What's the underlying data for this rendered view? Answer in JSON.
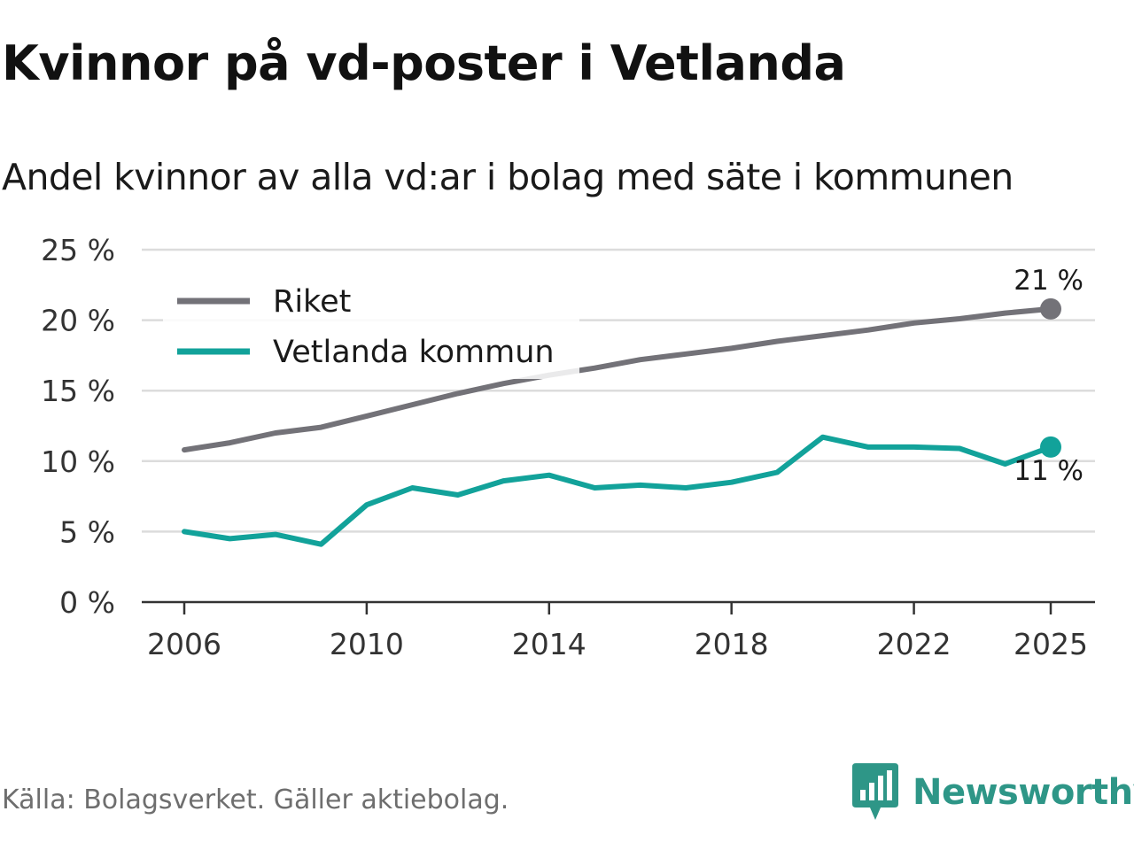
{
  "title": "Kvinnor på vd-poster i Vetlanda",
  "subtitle": "Andel kvinnor av alla vd:ar i bolag med säte i kommunen",
  "source": "Källa: Bolagsverket. Gäller aktiebolag.",
  "brand": {
    "name": "Newsworthy",
    "icon": "newsworthy-logo-icon",
    "color": "#2e9687"
  },
  "chart_data": {
    "type": "line",
    "x": [
      2006,
      2007,
      2008,
      2009,
      2010,
      2011,
      2012,
      2013,
      2014,
      2015,
      2016,
      2017,
      2018,
      2019,
      2020,
      2021,
      2022,
      2023,
      2024,
      2025
    ],
    "series": [
      {
        "name": "Riket",
        "color": "#737278",
        "values": [
          10.8,
          11.3,
          12.0,
          12.4,
          13.2,
          14.0,
          14.8,
          15.5,
          16.1,
          16.6,
          17.2,
          17.6,
          18.0,
          18.5,
          18.9,
          19.3,
          19.8,
          20.1,
          20.5,
          20.8
        ],
        "end_label": "21 %"
      },
      {
        "name": "Vetlanda kommun",
        "color": "#12a29a",
        "values": [
          5.0,
          4.5,
          4.8,
          4.1,
          6.9,
          8.1,
          7.6,
          8.6,
          9.0,
          8.1,
          8.3,
          8.1,
          8.5,
          9.2,
          11.7,
          11.0,
          11.0,
          10.9,
          9.8,
          11.0
        ],
        "end_label": "11 %"
      }
    ],
    "x_ticks": [
      2006,
      2010,
      2014,
      2018,
      2022,
      2025
    ],
    "y_ticks": [
      0,
      5,
      10,
      15,
      20,
      25
    ],
    "y_tick_labels": [
      "0 %",
      "5 %",
      "10 %",
      "15 %",
      "20 %",
      "25 %"
    ],
    "xlim": [
      2006,
      2025
    ],
    "ylim": [
      0,
      25
    ],
    "grid": true,
    "legend_position": "top-left",
    "xlabel": "",
    "ylabel": ""
  }
}
